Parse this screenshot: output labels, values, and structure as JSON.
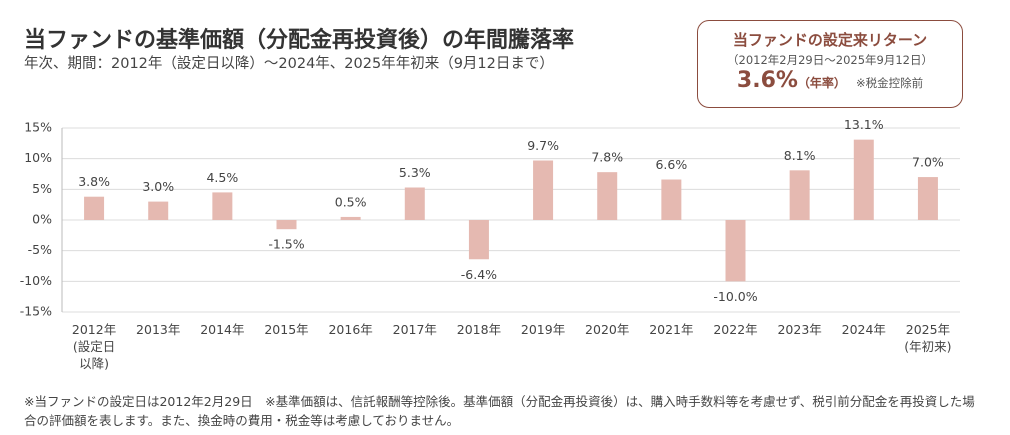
{
  "header": {
    "title": "当ファンドの基準価額（分配金再投資後）の年間騰落率",
    "subtitle": "年次、期間：2012年（設定日以降）～2024年、2025年年初来（9月12日まで）"
  },
  "return_box": {
    "title": "当ファンドの設定来リターン",
    "period": "（2012年2月29日～2025年9月12日）",
    "value": "3.6%",
    "unit": "（年率）",
    "note": "※税金控除前"
  },
  "chart_data": {
    "type": "bar",
    "categories": [
      "2012年\n(設定日\n以降)",
      "2013年",
      "2014年",
      "2015年",
      "2016年",
      "2017年",
      "2018年",
      "2019年",
      "2020年",
      "2021年",
      "2022年",
      "2023年",
      "2024年",
      "2025年\n(年初来)"
    ],
    "values": [
      3.8,
      3.0,
      4.5,
      -1.5,
      0.5,
      5.3,
      -6.4,
      9.7,
      7.8,
      6.6,
      -10.0,
      8.1,
      13.1,
      7.0
    ],
    "value_labels": [
      "3.8%",
      "3.0%",
      "4.5%",
      "-1.5%",
      "0.5%",
      "5.3%",
      "-6.4%",
      "9.7%",
      "7.8%",
      "6.6%",
      "-10.0%",
      "8.1%",
      "13.1%",
      "7.0%"
    ],
    "color": "#e5b9b1",
    "ylim": [
      -15,
      15
    ],
    "yticks": [
      {
        "value": -15,
        "label": "-15%"
      },
      {
        "value": -10,
        "label": "-10%"
      },
      {
        "value": -5,
        "label": "-5%"
      },
      {
        "value": 0,
        "label": "0%"
      },
      {
        "value": 5,
        "label": "5%"
      },
      {
        "value": 10,
        "label": "10%"
      },
      {
        "value": 15,
        "label": "15%"
      }
    ],
    "grid": true
  },
  "footnote": "※当ファンドの設定日は2012年2月29日　※基準価額は、信託報酬等控除後。基準価額（分配金再投資後）は、購入時手数料等を考慮せず、税引前分配金を再投資した場合の評価額を表します。また、換金時の費用・税金等は考慮しておりません。"
}
